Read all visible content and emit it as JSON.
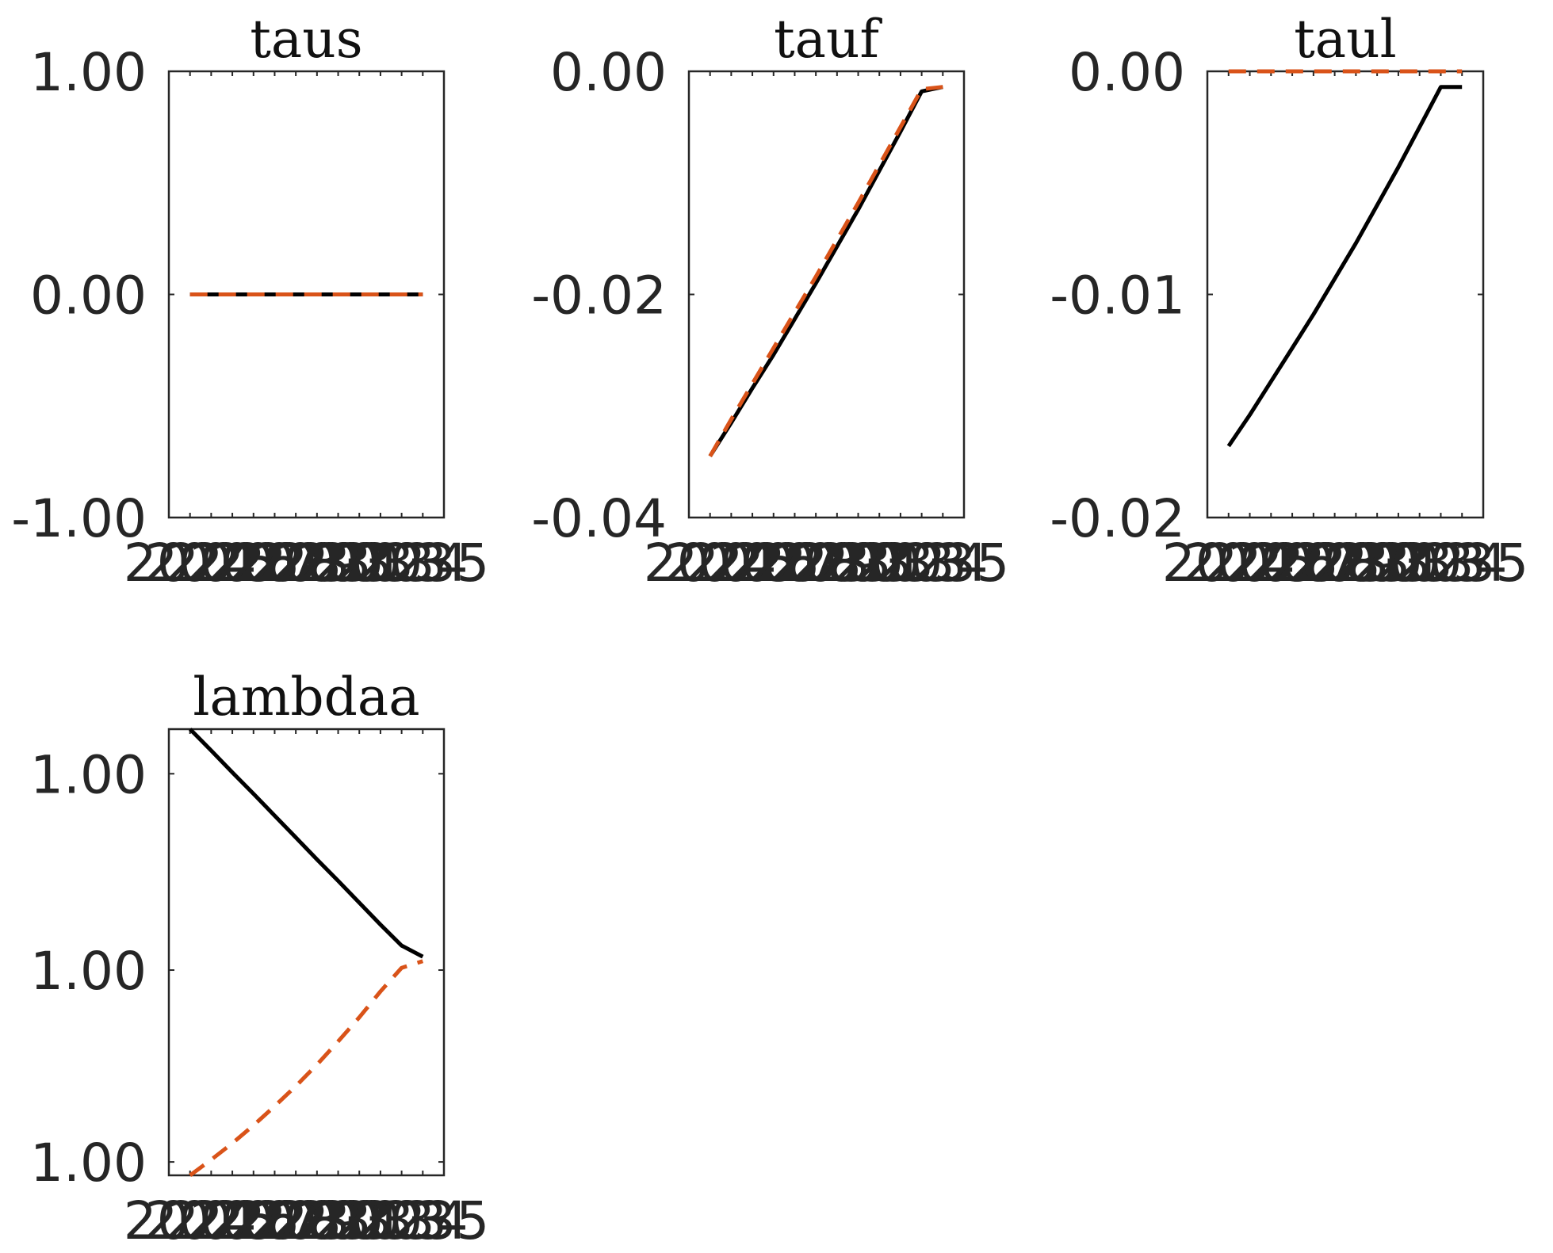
{
  "colors": {
    "actual": "#000000",
    "forecast": "#d95319",
    "axis": "#262626"
  },
  "chart_data": [
    {
      "type": "line",
      "title": "taus",
      "ylim": [
        -1,
        1
      ],
      "yticks": [
        "1.00",
        "0.00",
        "-1.00"
      ],
      "x": [
        2024,
        2025,
        2026,
        2027,
        2028,
        2029,
        2030,
        2031,
        2032,
        2033,
        2034,
        2035
      ],
      "xticklabels": [
        "2024",
        "2025",
        "2026",
        "2027",
        "2028",
        "2029",
        "2030",
        "2031",
        "2032",
        "2033",
        "2034",
        "2035"
      ],
      "series": [
        {
          "values": [
            0,
            0,
            0,
            0,
            0,
            0,
            0,
            0,
            0,
            0,
            0,
            0
          ],
          "color": "#000000",
          "style": "solid"
        },
        {
          "values": [
            0,
            0,
            0,
            0,
            0,
            0,
            0,
            0,
            0,
            0,
            0,
            0
          ],
          "color": "#d95319",
          "style": "dashed"
        }
      ]
    },
    {
      "type": "line",
      "title": "tauf",
      "ylim": [
        -0.04,
        0
      ],
      "yticks": [
        "0.00",
        "-0.02",
        "-0.04"
      ],
      "x": [
        2024,
        2025,
        2026,
        2027,
        2028,
        2029,
        2030,
        2031,
        2032,
        2033,
        2034,
        2035
      ],
      "xticklabels": [
        "2024",
        "2025",
        "2026",
        "2027",
        "2028",
        "2029",
        "2030",
        "2031",
        "2032",
        "2033",
        "2034",
        "2035"
      ],
      "series": [
        {
          "values": [
            -0.0345,
            -0.0315,
            -0.0284,
            -0.0254,
            -0.0222,
            -0.019,
            -0.0157,
            -0.0124,
            -0.0089,
            -0.0054,
            -0.0018,
            -0.0014
          ],
          "color": "#000000",
          "style": "solid"
        },
        {
          "values": [
            -0.0345,
            -0.0312,
            -0.028,
            -0.0248,
            -0.0216,
            -0.0184,
            -0.0151,
            -0.0118,
            -0.0084,
            -0.005,
            -0.0016,
            -0.0014
          ],
          "color": "#d95319",
          "style": "dashed"
        }
      ]
    },
    {
      "type": "line",
      "title": "taul",
      "ylim": [
        -0.02,
        0
      ],
      "yticks": [
        "0.00",
        "-0.01",
        "-0.02"
      ],
      "x": [
        2024,
        2025,
        2026,
        2027,
        2028,
        2029,
        2030,
        2031,
        2032,
        2033,
        2034,
        2035
      ],
      "xticklabels": [
        "2024",
        "2025",
        "2026",
        "2027",
        "2028",
        "2029",
        "2030",
        "2031",
        "2032",
        "2033",
        "2034",
        "2035"
      ],
      "series": [
        {
          "values": [
            -0.0168,
            -0.0154,
            -0.0139,
            -0.0124,
            -0.0109,
            -0.0093,
            -0.0077,
            -0.006,
            -0.0043,
            -0.0025,
            -0.0007,
            -0.0007
          ],
          "color": "#000000",
          "style": "solid"
        },
        {
          "values": [
            0,
            0,
            0,
            0,
            0,
            0,
            0,
            0,
            0,
            0,
            0,
            0
          ],
          "color": "#d95319",
          "style": "dashed"
        }
      ]
    },
    {
      "type": "line",
      "title": "lambdaa",
      "ylim": [
        0,
        1
      ],
      "yticks": [
        "1.00",
        "1.00",
        "1.00"
      ],
      "ytickfracs": [
        0.9,
        0.46,
        0.03
      ],
      "x": [
        2024,
        2025,
        2026,
        2027,
        2028,
        2029,
        2030,
        2031,
        2032,
        2033,
        2034,
        2035
      ],
      "xticklabels": [
        "2024",
        "2025",
        "2026",
        "2027",
        "2028",
        "2029",
        "2030",
        "2031",
        "2032",
        "2033",
        "2034",
        "2035"
      ],
      "series": [
        {
          "values": [
            1.0,
            0.952,
            0.903,
            0.855,
            0.806,
            0.757,
            0.708,
            0.66,
            0.611,
            0.562,
            0.515,
            0.49
          ],
          "color": "#000000",
          "style": "solid"
        },
        {
          "values": [
            0.0,
            0.035,
            0.072,
            0.112,
            0.155,
            0.2,
            0.248,
            0.3,
            0.354,
            0.412,
            0.465,
            0.48
          ],
          "color": "#d95319",
          "style": "dashed"
        }
      ]
    }
  ]
}
